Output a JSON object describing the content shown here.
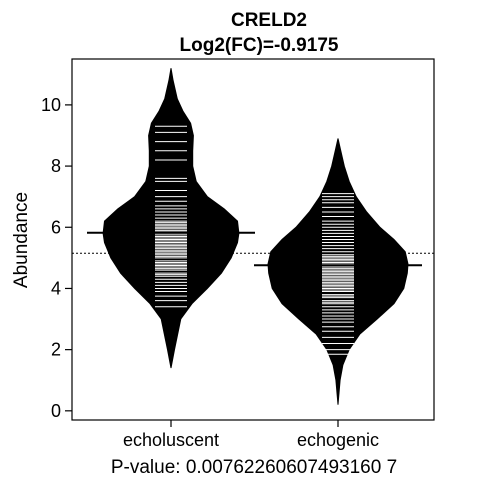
{
  "chart_data": {
    "type": "beanplot",
    "title": "CRELD2",
    "subtitle": "Log2(FC)=-0.9175",
    "ylabel": "Abundance",
    "xlabel": "P-value: 0.00762260607493160 7",
    "ylim": [
      -0.3,
      11.5
    ],
    "yticks": [
      0,
      2,
      4,
      6,
      8,
      10
    ],
    "overall_mean": 5.15,
    "categories": [
      "echoluscent",
      "echogenic"
    ],
    "groups": [
      {
        "name": "echoluscent",
        "mean": 5.82,
        "range": [
          1.4,
          11.2
        ],
        "profile": [
          [
            1.4,
            0.0
          ],
          [
            2.0,
            0.05
          ],
          [
            3.0,
            0.14
          ],
          [
            3.5,
            0.3
          ],
          [
            4.0,
            0.52
          ],
          [
            4.5,
            0.72
          ],
          [
            5.0,
            0.86
          ],
          [
            5.5,
            0.95
          ],
          [
            5.8,
            0.97
          ],
          [
            6.2,
            0.95
          ],
          [
            6.6,
            0.76
          ],
          [
            7.0,
            0.52
          ],
          [
            7.5,
            0.36
          ],
          [
            8.0,
            0.31
          ],
          [
            8.5,
            0.31
          ],
          [
            9.0,
            0.32
          ],
          [
            9.4,
            0.28
          ],
          [
            9.8,
            0.17
          ],
          [
            10.2,
            0.09
          ],
          [
            10.8,
            0.03
          ],
          [
            11.2,
            0.0
          ]
        ],
        "observations": [
          3.4,
          3.6,
          3.75,
          3.9,
          4.0,
          4.1,
          4.2,
          4.3,
          4.4,
          4.45,
          4.5,
          4.6,
          4.65,
          4.7,
          4.75,
          4.8,
          4.85,
          4.9,
          5.0,
          5.05,
          5.1,
          5.15,
          5.2,
          5.25,
          5.3,
          5.35,
          5.4,
          5.45,
          5.5,
          5.55,
          5.6,
          5.65,
          5.7,
          5.75,
          5.8,
          5.85,
          5.9,
          5.95,
          6.0,
          6.05,
          6.1,
          6.15,
          6.2,
          6.3,
          6.4,
          6.5,
          6.6,
          6.7,
          6.85,
          7.0,
          7.2,
          7.5,
          7.6,
          8.2,
          8.5,
          8.8,
          9.1,
          9.3
        ]
      },
      {
        "name": "echogenic",
        "mean": 4.76,
        "range": [
          0.2,
          8.9
        ],
        "profile": [
          [
            0.2,
            0.0
          ],
          [
            1.0,
            0.03
          ],
          [
            1.5,
            0.07
          ],
          [
            2.0,
            0.16
          ],
          [
            2.5,
            0.31
          ],
          [
            3.0,
            0.56
          ],
          [
            3.5,
            0.8
          ],
          [
            4.0,
            0.94
          ],
          [
            4.5,
            0.99
          ],
          [
            4.8,
            1.0
          ],
          [
            5.2,
            0.96
          ],
          [
            5.6,
            0.8
          ],
          [
            6.0,
            0.6
          ],
          [
            6.5,
            0.41
          ],
          [
            7.0,
            0.26
          ],
          [
            7.5,
            0.16
          ],
          [
            8.0,
            0.09
          ],
          [
            8.5,
            0.04
          ],
          [
            8.9,
            0.0
          ]
        ],
        "observations": [
          1.85,
          2.0,
          2.2,
          2.4,
          2.6,
          2.75,
          2.9,
          3.0,
          3.1,
          3.2,
          3.3,
          3.4,
          3.5,
          3.55,
          3.6,
          3.7,
          3.75,
          3.8,
          3.9,
          3.95,
          4.0,
          4.05,
          4.1,
          4.15,
          4.2,
          4.25,
          4.3,
          4.35,
          4.4,
          4.45,
          4.5,
          4.55,
          4.6,
          4.65,
          4.7,
          4.75,
          4.8,
          4.85,
          4.9,
          4.95,
          5.0,
          5.05,
          5.1,
          5.2,
          5.3,
          5.4,
          5.5,
          5.6,
          5.7,
          5.8,
          5.9,
          6.0,
          6.1,
          6.2,
          6.35,
          6.5,
          6.65,
          6.8,
          6.9,
          7.0,
          7.1
        ]
      }
    ],
    "grid": false,
    "legend": "none"
  }
}
